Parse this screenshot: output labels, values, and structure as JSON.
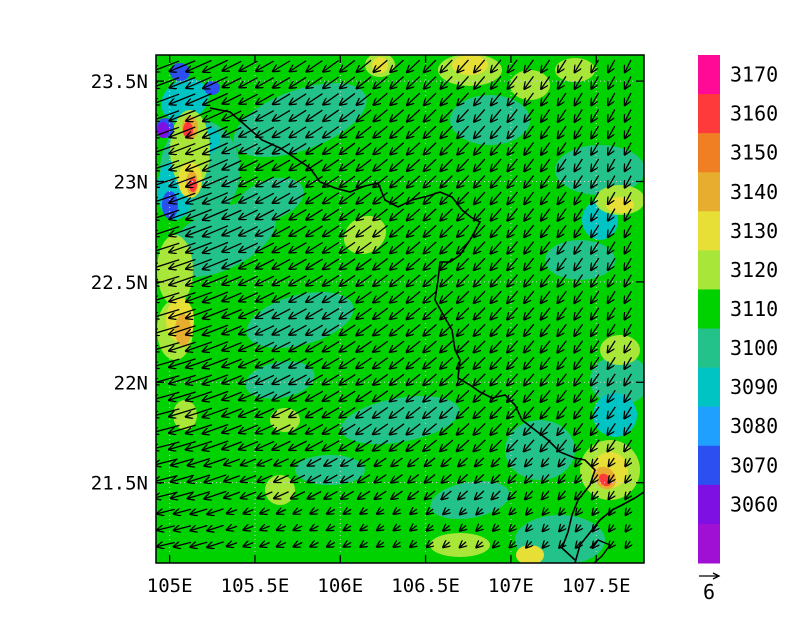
{
  "chart_data": {
    "type": "heatmap",
    "x_ticks": [
      "105E",
      "105.5E",
      "106E",
      "106.5E",
      "107E",
      "107.5E"
    ],
    "y_ticks": [
      "21.5N",
      "22N",
      "22.5N",
      "23N",
      "23.5N"
    ],
    "x_tick_values": [
      105.0,
      105.5,
      106.0,
      106.5,
      107.0,
      107.5
    ],
    "y_tick_values": [
      21.5,
      22.0,
      22.5,
      23.0,
      23.5
    ],
    "xlim": [
      104.92,
      107.78
    ],
    "ylim": [
      21.1,
      23.63
    ],
    "grid": true,
    "colorbar": {
      "labels": [
        "3170",
        "3160",
        "3150",
        "3140",
        "3130",
        "3120",
        "3110",
        "3100",
        "3090",
        "3080",
        "3070",
        "3060"
      ],
      "colors": [
        "#ff0a96",
        "#ff3a3a",
        "#f07f23",
        "#e6ad2e",
        "#e8df36",
        "#a9e63a",
        "#00d200",
        "#23c28b",
        "#00c4c4",
        "#1fa0ff",
        "#2c4ff2",
        "#7f10e3",
        "#a00fd4"
      ]
    },
    "vector_reference": "6",
    "field_colors": {
      "base": "#00d200",
      "teal": "#23c28b",
      "cyan": "#00c4c4",
      "lightgreen": "#a9e63a",
      "yellow": "#e8df36",
      "orange": "#e6ad2e",
      "red": "#ff3a3a",
      "blue": "#2c4ff2",
      "purple": "#7f10e3"
    }
  }
}
